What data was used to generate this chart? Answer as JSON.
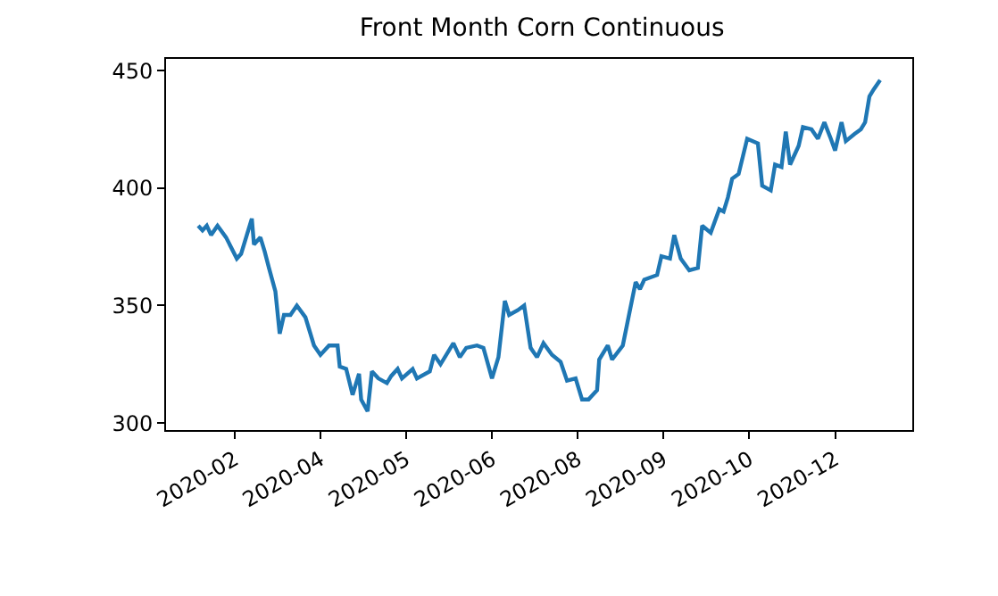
{
  "chart_data": {
    "type": "line",
    "title": "Front Month Corn Continuous",
    "x": [
      "2020-02-10",
      "2020-02-12",
      "2020-02-14",
      "2020-02-16",
      "2020-02-19",
      "2020-02-23",
      "2020-02-28",
      "2020-03-01",
      "2020-03-06",
      "2020-03-07",
      "2020-03-10",
      "2020-03-12",
      "2020-03-14",
      "2020-03-17",
      "2020-03-19",
      "2020-03-21",
      "2020-03-24",
      "2020-03-27",
      "2020-03-31",
      "2020-04-04",
      "2020-04-07",
      "2020-04-11",
      "2020-04-15",
      "2020-04-16",
      "2020-04-19",
      "2020-04-22",
      "2020-04-25",
      "2020-04-26",
      "2020-04-29",
      "2020-05-01",
      "2020-05-04",
      "2020-05-08",
      "2020-05-10",
      "2020-05-13",
      "2020-05-15",
      "2020-05-20",
      "2020-05-22",
      "2020-05-28",
      "2020-05-30",
      "2020-06-02",
      "2020-06-08",
      "2020-06-11",
      "2020-06-14",
      "2020-06-19",
      "2020-06-22",
      "2020-06-26",
      "2020-06-29",
      "2020-07-02",
      "2020-07-04",
      "2020-07-08",
      "2020-07-11",
      "2020-07-14",
      "2020-07-17",
      "2020-07-20",
      "2020-07-24",
      "2020-07-28",
      "2020-07-31",
      "2020-08-04",
      "2020-08-07",
      "2020-08-10",
      "2020-08-14",
      "2020-08-15",
      "2020-08-19",
      "2020-08-21",
      "2020-08-26",
      "2020-08-28",
      "2020-09-01",
      "2020-09-03",
      "2020-09-05",
      "2020-09-11",
      "2020-09-13",
      "2020-09-17",
      "2020-09-19",
      "2020-09-22",
      "2020-09-26",
      "2020-09-30",
      "2020-10-02",
      "2020-10-06",
      "2020-10-10",
      "2020-10-12",
      "2020-10-14",
      "2020-10-16",
      "2020-10-19",
      "2020-10-23",
      "2020-10-28",
      "2020-10-30",
      "2020-11-03",
      "2020-11-05",
      "2020-11-08",
      "2020-11-10",
      "2020-11-12",
      "2020-11-16",
      "2020-11-18",
      "2020-11-22",
      "2020-11-25",
      "2020-11-28",
      "2020-12-01",
      "2020-12-03",
      "2020-12-06",
      "2020-12-08",
      "2020-12-12",
      "2020-12-15",
      "2020-12-17",
      "2020-12-19",
      "2020-12-21",
      "2020-12-24"
    ],
    "series": [
      {
        "color": "#1f77b4",
        "values": [
          384,
          382,
          384,
          380,
          384,
          379,
          370,
          372,
          387,
          376,
          379,
          373,
          366,
          356,
          338,
          346,
          346,
          350,
          345,
          333,
          329,
          333,
          333,
          324,
          323,
          312,
          321,
          310,
          305,
          322,
          319,
          317,
          320,
          323,
          319,
          323,
          319,
          322,
          329,
          325,
          334,
          328,
          332,
          333,
          332,
          319,
          328,
          352,
          346,
          348,
          350,
          332,
          328,
          334,
          329,
          326,
          318,
          319,
          310,
          310,
          314,
          327,
          333,
          327,
          333,
          342,
          360,
          357,
          361,
          363,
          371,
          370,
          380,
          370,
          365,
          366,
          384,
          381,
          391,
          390,
          396,
          404,
          406,
          421,
          419,
          401,
          399,
          410,
          409,
          424,
          410,
          418,
          426,
          425,
          421,
          428,
          421,
          416,
          428,
          420,
          423,
          425,
          428,
          439,
          442,
          446
        ]
      }
    ],
    "xlim": [
      "2020-01-26",
      "2021-01-08"
    ],
    "xticks": [
      {
        "value": "2020-02-27",
        "label": "2020-02"
      },
      {
        "value": "2020-04-07",
        "label": "2020-04"
      },
      {
        "value": "2020-05-17",
        "label": "2020-05"
      },
      {
        "value": "2020-06-26",
        "label": "2020-06"
      },
      {
        "value": "2020-08-05",
        "label": "2020-08"
      },
      {
        "value": "2020-09-14",
        "label": "2020-09"
      },
      {
        "value": "2020-10-24",
        "label": "2020-10"
      },
      {
        "value": "2020-12-03",
        "label": "2020-12"
      }
    ],
    "ylim": [
      297,
      455
    ],
    "yticks": [
      300,
      350,
      400,
      450
    ],
    "marker": "none",
    "line_style": "solid"
  }
}
